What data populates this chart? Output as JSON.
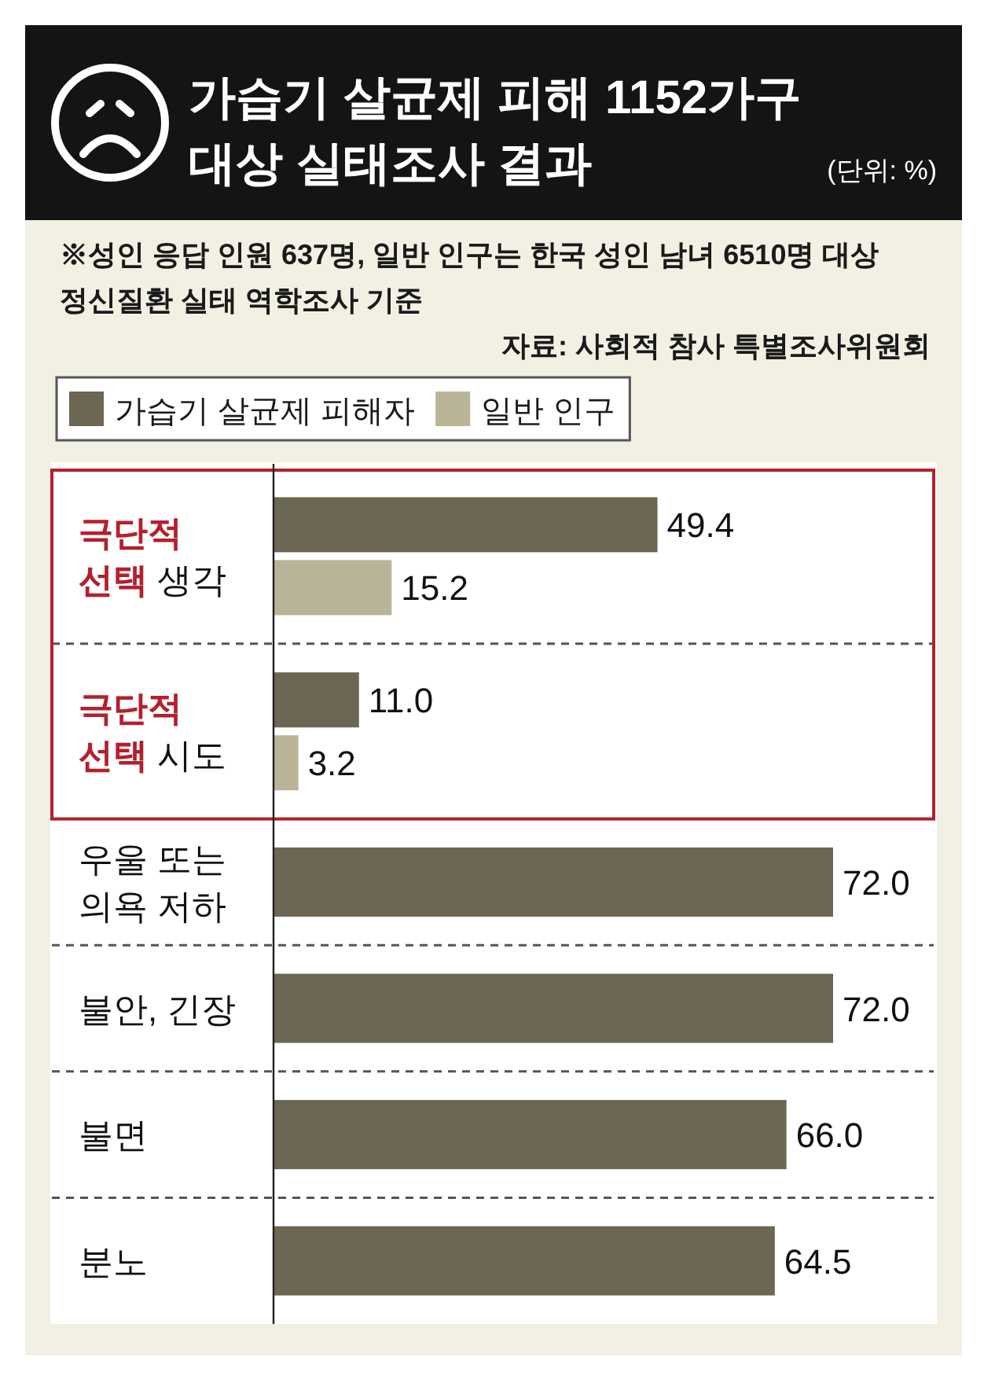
{
  "chart_data": {
    "type": "bar",
    "orientation": "horizontal",
    "title": "가습기 살균제 피해 1152가구 대상 실태조사 결과",
    "subtitle": "(단위: %)",
    "annotations": [
      "※성인 응답 인원 637명, 일반 인구는 한국 성인 남녀 6510명 대상 정신질환 실태 역학조사 기준",
      "자료: 사회적 참사 특별조사위원회"
    ],
    "categories": [
      "**극단적 선택** 생각",
      "**극단적 선택** 시도",
      "우울 또는 의욕 저하",
      "불안, 긴장",
      "불면",
      "분노"
    ],
    "series": [
      {
        "name": "가습기 살균제 피해자",
        "color": "#6b6752",
        "values": [
          49.4,
          11.0,
          72.0,
          72.0,
          66.0,
          64.5
        ],
        "value_labels": [
          "49.4",
          "11.0",
          "72.0",
          "72.0",
          "66.0",
          "64.5"
        ]
      },
      {
        "name": "일반 인구",
        "color": "#b9b497",
        "values": [
          15.2,
          3.2,
          null,
          null,
          null,
          null
        ],
        "value_labels": [
          "15.2",
          "3.2",
          null,
          null,
          null,
          null
        ]
      }
    ],
    "legend": "top left",
    "tick_labels": "y"
  }
}
